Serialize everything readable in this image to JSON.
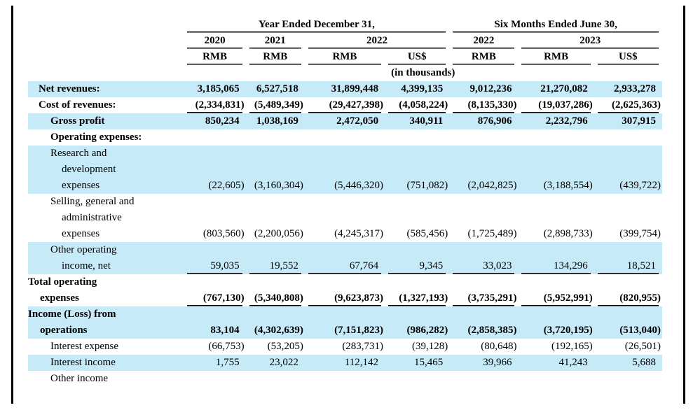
{
  "accent_colors": {
    "row_highlight": "#C7EAF8",
    "text": "#000000"
  },
  "table": {
    "col_groups": [
      {
        "label": "Year Ended December 31,",
        "span": 4
      },
      {
        "label": "Six Months Ended June 30,",
        "span": 3
      }
    ],
    "year_headers": [
      {
        "label": "2020",
        "span": 1
      },
      {
        "label": "2021",
        "span": 1
      },
      {
        "label": "2022",
        "span": 2
      },
      {
        "label": "2022",
        "span": 1
      },
      {
        "label": "2023",
        "span": 2
      }
    ],
    "currency_headers": [
      "RMB",
      "RMB",
      "RMB",
      "US$",
      "RMB",
      "RMB",
      "US$"
    ],
    "units_note": "(in thousands)",
    "rows": [
      {
        "label": "Net revenues:",
        "indent": 1,
        "bold": true,
        "blue": true,
        "underline": false,
        "values": [
          "3,185,065",
          "6,527,518",
          "31,899,448",
          "4,399,135",
          "9,012,236",
          "21,270,082",
          "2,933,278"
        ]
      },
      {
        "label": "Cost of revenues:",
        "indent": 1,
        "bold": true,
        "blue": false,
        "underline": true,
        "values": [
          "(2,334,831)",
          "(5,489,349)",
          "(29,427,398)",
          "(4,058,224)",
          "(8,135,330)",
          "(19,037,286)",
          "(2,625,363)"
        ]
      },
      {
        "label": "Gross profit",
        "indent": 2,
        "bold": true,
        "blue": true,
        "underline": false,
        "values": [
          "850,234",
          "1,038,169",
          "2,472,050",
          "340,911",
          "876,906",
          "2,232,796",
          "307,915"
        ]
      },
      {
        "label": "Operating expenses:",
        "indent": 2,
        "bold": true,
        "blue": false,
        "underline": false,
        "values": [
          "",
          "",
          "",
          "",
          "",
          "",
          ""
        ]
      },
      {
        "label": "Research and\ndevelopment\nexpenses",
        "indent": 2,
        "bold": false,
        "blue": true,
        "underline": false,
        "values": [
          "(22,605)",
          "(3,160,304)",
          "(5,446,320)",
          "(751,082)",
          "(2,042,825)",
          "(3,188,554)",
          "(439,722)"
        ]
      },
      {
        "label": "Selling, general and\nadministrative\nexpenses",
        "indent": 2,
        "bold": false,
        "blue": false,
        "underline": false,
        "values": [
          "(803,560)",
          "(2,200,056)",
          "(4,245,317)",
          "(585,456)",
          "(1,725,489)",
          "(2,898,733)",
          "(399,754)"
        ]
      },
      {
        "label": "Other operating\nincome, net",
        "indent": 2,
        "bold": false,
        "blue": true,
        "underline": true,
        "values": [
          "59,035",
          "19,552",
          "67,764",
          "9,345",
          "33,023",
          "134,296",
          "18,521"
        ]
      },
      {
        "label": "Total operating\nexpenses",
        "indent": 0,
        "bold": true,
        "blue": false,
        "underline": true,
        "values": [
          "(767,130)",
          "(5,340,808)",
          "(9,623,873)",
          "(1,327,193)",
          "(3,735,291)",
          "(5,952,991)",
          "(820,955)"
        ]
      },
      {
        "label": "Income (Loss) from\noperations",
        "indent": 0,
        "bold": true,
        "blue": true,
        "underline": false,
        "values": [
          "83,104",
          "(4,302,639)",
          "(7,151,823)",
          "(986,282)",
          "(2,858,385)",
          "(3,720,195)",
          "(513,040)"
        ]
      },
      {
        "label": "Interest expense",
        "indent": 2,
        "bold": false,
        "blue": false,
        "underline": false,
        "values": [
          "(66,753)",
          "(53,205)",
          "(283,731)",
          "(39,128)",
          "(80,648)",
          "(192,165)",
          "(26,501)"
        ]
      },
      {
        "label": "Interest income",
        "indent": 2,
        "bold": false,
        "blue": true,
        "underline": false,
        "values": [
          "1,755",
          "23,022",
          "112,142",
          "15,465",
          "39,966",
          "41,243",
          "5,688"
        ]
      },
      {
        "label": "Other income",
        "indent": 2,
        "bold": false,
        "blue": false,
        "underline": false,
        "values": [
          "",
          "",
          "",
          "",
          "",
          "",
          ""
        ]
      }
    ]
  }
}
